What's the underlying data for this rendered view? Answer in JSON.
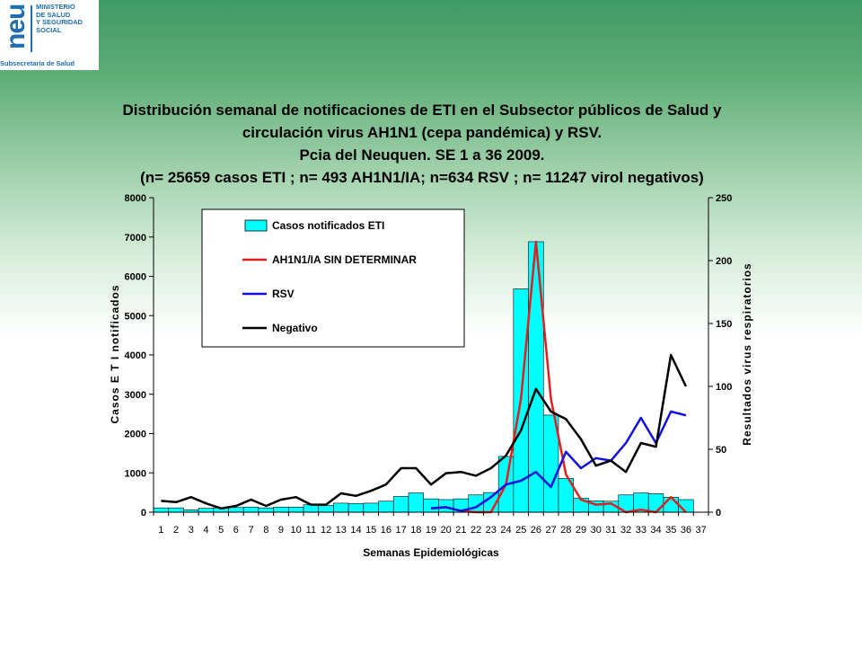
{
  "logo": {
    "mark": "neu",
    "org_lines": [
      "MINISTERIO",
      "DE SALUD",
      "Y SEGURIDAD",
      "SOCIAL"
    ],
    "sub": "Subsecretaría de Salud"
  },
  "chart_data": {
    "type": "bar",
    "title_lines": [
      "Distribución semanal de notificaciones de ETI en el Subsector públicos de Salud  y",
      "circulación virus AH1N1 (cepa pandémica) y RSV.",
      "Pcia del Neuquen. SE 1 a 36 2009.",
      "(n= 25659 casos ETI ;  n= 493 AH1N1/IA;   n=634 RSV ;   n= 11247 virol negativos)"
    ],
    "xlabel": "Semanas Epidemiológicas",
    "ylabel": "Casos E T I notificados",
    "y2label": "Resultados virus respiratorios",
    "categories": [
      "1",
      "2",
      "3",
      "4",
      "5",
      "6",
      "7",
      "8",
      "9",
      "10",
      "11",
      "12",
      "13",
      "14",
      "15",
      "16",
      "17",
      "18",
      "19",
      "20",
      "21",
      "22",
      "23",
      "24",
      "25",
      "26",
      "27",
      "28",
      "29",
      "30",
      "31",
      "32",
      "33",
      "34",
      "35",
      "36",
      "37"
    ],
    "ylim": [
      0,
      8000
    ],
    "yticks": [
      "0",
      "1000",
      "2000",
      "3000",
      "4000",
      "5000",
      "6000",
      "7000",
      "8000"
    ],
    "y2lim": [
      0,
      250
    ],
    "y2ticks": [
      "0",
      "50",
      "100",
      "150",
      "200",
      "250"
    ],
    "legend_position": "top-left",
    "bars": {
      "name": "Casos notificados ETI",
      "color": "#00ffff",
      "values": [
        110,
        110,
        60,
        100,
        110,
        120,
        130,
        110,
        130,
        130,
        190,
        170,
        230,
        220,
        230,
        280,
        400,
        490,
        340,
        320,
        340,
        440,
        500,
        1420,
        5680,
        6880,
        2470,
        860,
        360,
        290,
        280,
        440,
        490,
        470,
        380,
        320
      ]
    },
    "series": [
      {
        "name": "AH1N1/IA SIN DETERMINAR",
        "color": "#e02020",
        "x": [
          19,
          20,
          21,
          22,
          23,
          24,
          25,
          26,
          27,
          28,
          29,
          30,
          31,
          32,
          33,
          34,
          35,
          36
        ],
        "values": [
          3,
          4,
          1,
          0,
          0,
          22,
          90,
          215,
          90,
          30,
          10,
          6,
          7,
          0,
          2,
          0,
          12,
          0
        ]
      },
      {
        "name": "RSV",
        "color": "#1010e0",
        "x": [
          19,
          20,
          21,
          22,
          23,
          24,
          25,
          26,
          27,
          28,
          29,
          30,
          31,
          32,
          33,
          34,
          35,
          36
        ],
        "values": [
          3,
          4,
          1,
          4,
          12,
          22,
          25,
          32,
          20,
          48,
          35,
          43,
          41,
          55,
          75,
          55,
          80,
          77
        ]
      },
      {
        "name": "Negativo",
        "color": "#000000",
        "x": [
          1,
          2,
          3,
          4,
          5,
          6,
          7,
          8,
          9,
          10,
          11,
          12,
          13,
          14,
          15,
          16,
          17,
          18,
          19,
          20,
          21,
          22,
          23,
          24,
          25,
          26,
          27,
          28,
          29,
          30,
          31,
          32,
          33,
          34,
          35,
          36
        ],
        "values": [
          9,
          8,
          12,
          7,
          3,
          5,
          10,
          5,
          10,
          12,
          6,
          6,
          15,
          13,
          17,
          22,
          35,
          35,
          22,
          31,
          32,
          29,
          35,
          45,
          65,
          98,
          80,
          74,
          58,
          37,
          41,
          32,
          55,
          52,
          125,
          100
        ]
      }
    ]
  }
}
